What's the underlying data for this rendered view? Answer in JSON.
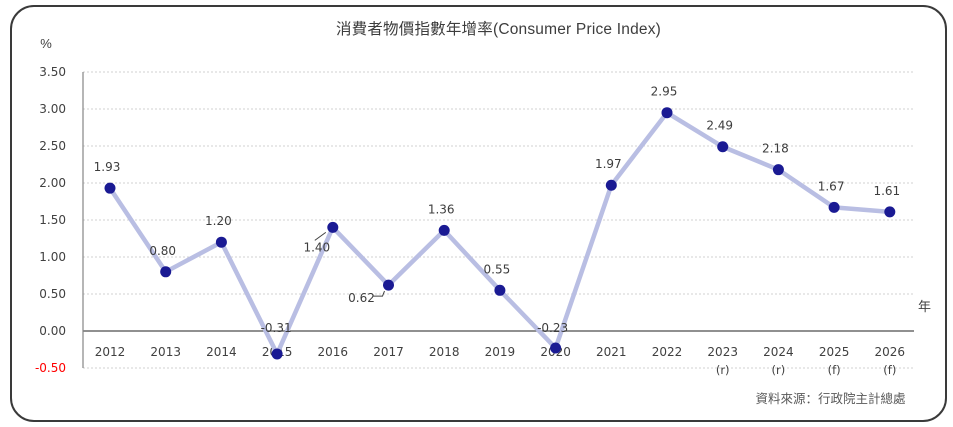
{
  "source": "資料來源：行政院主計總處",
  "chart_data": {
    "type": "line",
    "title": "消費者物價指數年增率(Consumer Price Index)",
    "categories": [
      "2012",
      "2013",
      "2014",
      "2015",
      "2016",
      "2017",
      "2018",
      "2019",
      "2020",
      "2021",
      "2022",
      "2023",
      "2024",
      "2025",
      "2026"
    ],
    "category_sublabels": [
      "",
      "",
      "",
      "",
      "",
      "",
      "",
      "",
      "",
      "",
      "",
      "(r)",
      "(r)",
      "(f)",
      "(f)"
    ],
    "values": [
      1.93,
      0.8,
      1.2,
      -0.31,
      1.4,
      0.62,
      1.36,
      0.55,
      -0.23,
      1.97,
      2.95,
      2.49,
      2.18,
      1.67,
      1.61
    ],
    "value_labels": [
      "1.93",
      "0.80",
      "1.20",
      "-0.31",
      "1.40",
      "0.62",
      "1.36",
      "0.55",
      "-0.23",
      "1.97",
      "2.95",
      "2.49",
      "2.18",
      "1.67",
      "1.61"
    ],
    "ylabel": "%",
    "xlabel": "年",
    "ylim": [
      -0.5,
      3.5
    ],
    "ytick_step": 0.5,
    "grid": "horizontal-dashed",
    "legend": "none",
    "colors": {
      "line": "#b9bee3",
      "marker": "#1a1a93",
      "grid": "#d2d2d2",
      "axis": "#4d4d4d",
      "y_axis_line": "#858585",
      "tick_text": "#404040",
      "negative_tick_text": "#ff0000",
      "label_text": "#3d3d3d",
      "leader": "#404040"
    }
  }
}
